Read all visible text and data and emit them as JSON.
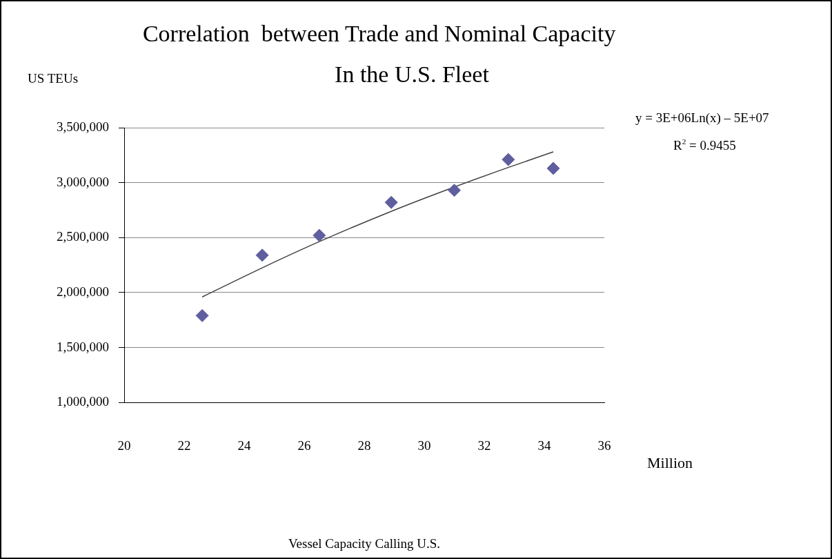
{
  "chart_data": {
    "type": "scatter",
    "title": "Correlation  between Trade and Nominal Capacity",
    "subtitle": "In the U.S. Fleet",
    "ylabel": "US TEUs",
    "annotations": [
      "y = 3E+06Ln(x) – 5E+07",
      "R$^{2}$ = 0.9455",
      "Million",
      "Vessel Capacity Calling U.S."
    ],
    "series": [
      {
        "marker": "diamond",
        "color": "#5f5f9f",
        "x": [
          22.6,
          24.6,
          26.5,
          28.9,
          31.0,
          32.8,
          34.3
        ],
        "values": [
          1790000,
          2340000,
          2520000,
          2820000,
          2930000,
          3210000,
          3130000
        ]
      },
      {
        "type": "line",
        "color": "#404040",
        "x": [
          22.6,
          24.6,
          26.5,
          28.9,
          31.0,
          32.8,
          34.3
        ],
        "values": [
          1960000,
          2225000,
          2463000,
          2739000,
          2960000,
          3138000,
          3280000
        ]
      }
    ],
    "xlim": [
      20,
      36
    ],
    "xticks": [
      20,
      22,
      24,
      26,
      28,
      30,
      32,
      34,
      36
    ],
    "ylim": [
      1000000,
      3500000
    ],
    "yticks": [
      {
        "value": 1000000,
        "label": "1,000,000"
      },
      {
        "value": 1500000,
        "label": "1,500,000"
      },
      {
        "value": 2000000,
        "label": "2,000,000"
      },
      {
        "value": 2500000,
        "label": "2,500,000"
      },
      {
        "value": 3000000,
        "label": "3,000,000"
      },
      {
        "value": 3500000,
        "label": "3,500,000"
      }
    ],
    "grid": "y",
    "legend": false
  }
}
